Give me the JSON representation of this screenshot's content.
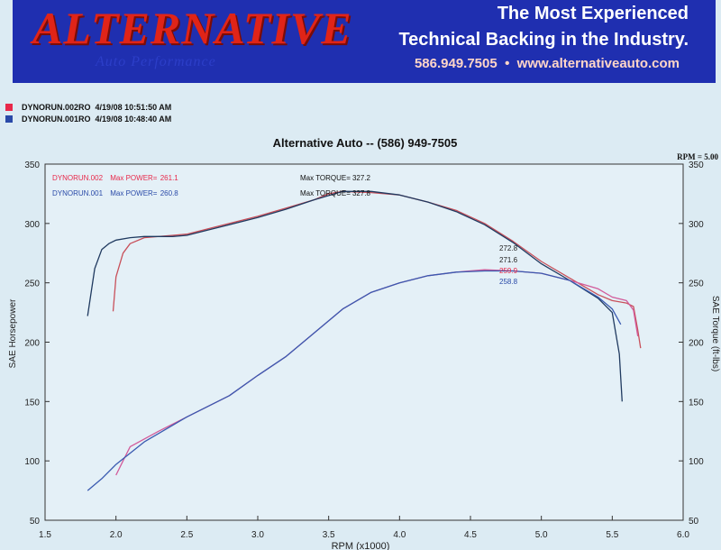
{
  "banner": {
    "brand_name": "ALTERNATIVE",
    "brand_sub": "Auto Performance",
    "tagline_1": "The Most Experienced",
    "tagline_2": "Technical Backing in the Industry.",
    "phone": "586.949.7505",
    "separator": "•",
    "website": "www.alternativeauto.com",
    "colors": {
      "background": "#1f2fb0",
      "logo": "#e02418",
      "tagline": "#ffffff"
    }
  },
  "runs": [
    {
      "name": "DYNORUN.002RO",
      "date": "4/19/08",
      "time": "10:51:50 AM",
      "color": "#e8284a"
    },
    {
      "name": "DYNORUN.001RO",
      "date": "4/19/08",
      "time": "10:48:40 AM",
      "color": "#2a4aa8"
    }
  ],
  "chart_data": {
    "type": "line",
    "title": "Alternative Auto -- (586) 949-7505",
    "xlabel": "RPM (x1000)",
    "ylabel_left": "SAE Horsepower",
    "ylabel_right": "SAE Torque (ft-lbs)",
    "corner_note": "RPM = 5.00",
    "xlim": [
      1.5,
      6.0
    ],
    "ylim": [
      50,
      350
    ],
    "xticks": [
      "1.5",
      "2.0",
      "2.5",
      "3.0",
      "3.5",
      "4.0",
      "4.5",
      "5.0",
      "5.5",
      "6.0"
    ],
    "yticks": [
      "50",
      "100",
      "150",
      "200",
      "250",
      "300",
      "350"
    ],
    "grid": false,
    "legend_placement": "top-left",
    "legend": [
      {
        "run": "DYNORUN.002",
        "label": "Max POWER=",
        "value": "261.1",
        "color": "#e8284a"
      },
      {
        "run": "DYNORUN.001",
        "label": "Max POWER=",
        "value": "260.8",
        "color": "#2a4aa8"
      }
    ],
    "torque_notes": [
      {
        "label": "Max TORQUE=",
        "value": "327.2"
      },
      {
        "label": "Max TORQUE=",
        "value": "327.8"
      }
    ],
    "readout_values": [
      {
        "value": "272.8",
        "color": "#222222"
      },
      {
        "value": "271.6",
        "color": "#222222"
      },
      {
        "value": "259.9",
        "color": "#e8284a"
      },
      {
        "value": "258.8",
        "color": "#2a4aa8"
      }
    ],
    "series": [
      {
        "run": "DYNORUN.002",
        "quantity": "torque",
        "color": "#c8505a",
        "x": [
          1.98,
          2.0,
          2.05,
          2.1,
          2.2,
          2.4,
          2.5,
          2.7,
          3.0,
          3.2,
          3.4,
          3.5,
          3.6,
          3.8,
          4.0,
          4.2,
          4.4,
          4.6,
          4.8,
          5.0,
          5.2,
          5.4,
          5.5,
          5.6,
          5.65,
          5.68,
          5.7
        ],
        "y": [
          226,
          255,
          275,
          283,
          288,
          290,
          291,
          297,
          306,
          313,
          320,
          325,
          327,
          326,
          324,
          318,
          311,
          300,
          285,
          268,
          254,
          240,
          235,
          233,
          230,
          210,
          195
        ]
      },
      {
        "run": "DYNORUN.001",
        "quantity": "torque",
        "color": "#203a60",
        "x": [
          1.8,
          1.85,
          1.9,
          1.95,
          2.0,
          2.1,
          2.2,
          2.4,
          2.5,
          2.7,
          3.0,
          3.2,
          3.4,
          3.6,
          3.8,
          4.0,
          4.2,
          4.4,
          4.6,
          4.8,
          5.0,
          5.2,
          5.4,
          5.5,
          5.55,
          5.57
        ],
        "y": [
          222,
          262,
          278,
          283,
          286,
          288,
          289,
          289,
          290,
          296,
          305,
          312,
          320,
          327,
          327,
          324,
          318,
          310,
          299,
          284,
          266,
          252,
          237,
          225,
          190,
          150
        ]
      },
      {
        "run": "DYNORUN.002",
        "quantity": "power",
        "color": "#d25a9a",
        "x": [
          2.0,
          2.05,
          2.1,
          2.3,
          2.5,
          2.8,
          3.0,
          3.2,
          3.4,
          3.6,
          3.8,
          4.0,
          4.2,
          4.4,
          4.6,
          4.8,
          5.0,
          5.2,
          5.4,
          5.5,
          5.6,
          5.65,
          5.68
        ],
        "y": [
          88,
          100,
          112,
          125,
          137,
          155,
          172,
          188,
          208,
          228,
          242,
          250,
          256,
          259,
          261,
          260,
          258,
          252,
          245,
          238,
          235,
          227,
          205
        ]
      },
      {
        "run": "DYNORUN.001",
        "quantity": "power",
        "color": "#3a5ab0",
        "x": [
          1.8,
          1.9,
          2.0,
          2.2,
          2.5,
          2.8,
          3.0,
          3.2,
          3.4,
          3.6,
          3.8,
          4.0,
          4.2,
          4.4,
          4.6,
          4.8,
          5.0,
          5.2,
          5.4,
          5.5,
          5.56
        ],
        "y": [
          75,
          85,
          97,
          116,
          137,
          155,
          172,
          188,
          208,
          228,
          242,
          250,
          256,
          259,
          260,
          260,
          258,
          252,
          238,
          228,
          215
        ]
      }
    ]
  }
}
